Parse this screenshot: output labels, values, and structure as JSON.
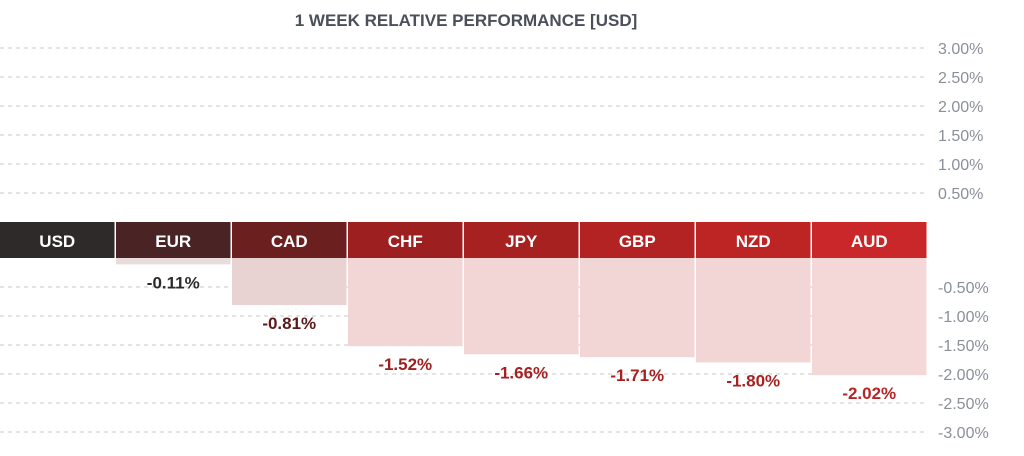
{
  "chart_data": {
    "type": "bar",
    "title": "1 WEEK RELATIVE PERFORMANCE  [USD]",
    "categories": [
      "USD",
      "EUR",
      "CAD",
      "CHF",
      "JPY",
      "GBP",
      "NZD",
      "AUD"
    ],
    "values": [
      0,
      -0.11,
      -0.81,
      -1.52,
      -1.66,
      -1.71,
      -1.8,
      -2.02
    ],
    "value_labels": [
      "",
      "-0.11%",
      "-0.81%",
      "-1.52%",
      "-1.66%",
      "-1.71%",
      "-1.80%",
      "-2.02%"
    ],
    "positive_ticks": [
      "3.00%",
      "2.50%",
      "2.00%",
      "1.50%",
      "1.00%",
      "0.50%"
    ],
    "positive_tick_values": [
      3.0,
      2.5,
      2.0,
      1.5,
      1.0,
      0.5
    ],
    "negative_ticks": [
      "-0.50%",
      "-1.00%",
      "-1.50%",
      "-2.00%",
      "-2.50%",
      "-3.00%"
    ],
    "negative_tick_values": [
      -0.5,
      -1.0,
      -1.5,
      -2.0,
      -2.5,
      -3.0
    ],
    "ylim": [
      -3.0,
      3.0
    ],
    "grid": true,
    "header_colors": [
      "#2f2a2a",
      "#4a2424",
      "#6b1f1f",
      "#9e1f1f",
      "#a82121",
      "#b32323",
      "#bd2424",
      "#c9272a"
    ],
    "bar_colors": [
      "#e9e5e5",
      "#e8dcdc",
      "#e8d2d2",
      "#f2d6d6",
      "#f2d6d6",
      "#f2d6d6",
      "#f2d6d6",
      "#f4d8d8"
    ],
    "label_colors": [
      "#2b2b2b",
      "#2b2b2b",
      "#5a1a1a",
      "#9e1f1f",
      "#a82121",
      "#a82121",
      "#a82121",
      "#b52525"
    ]
  }
}
